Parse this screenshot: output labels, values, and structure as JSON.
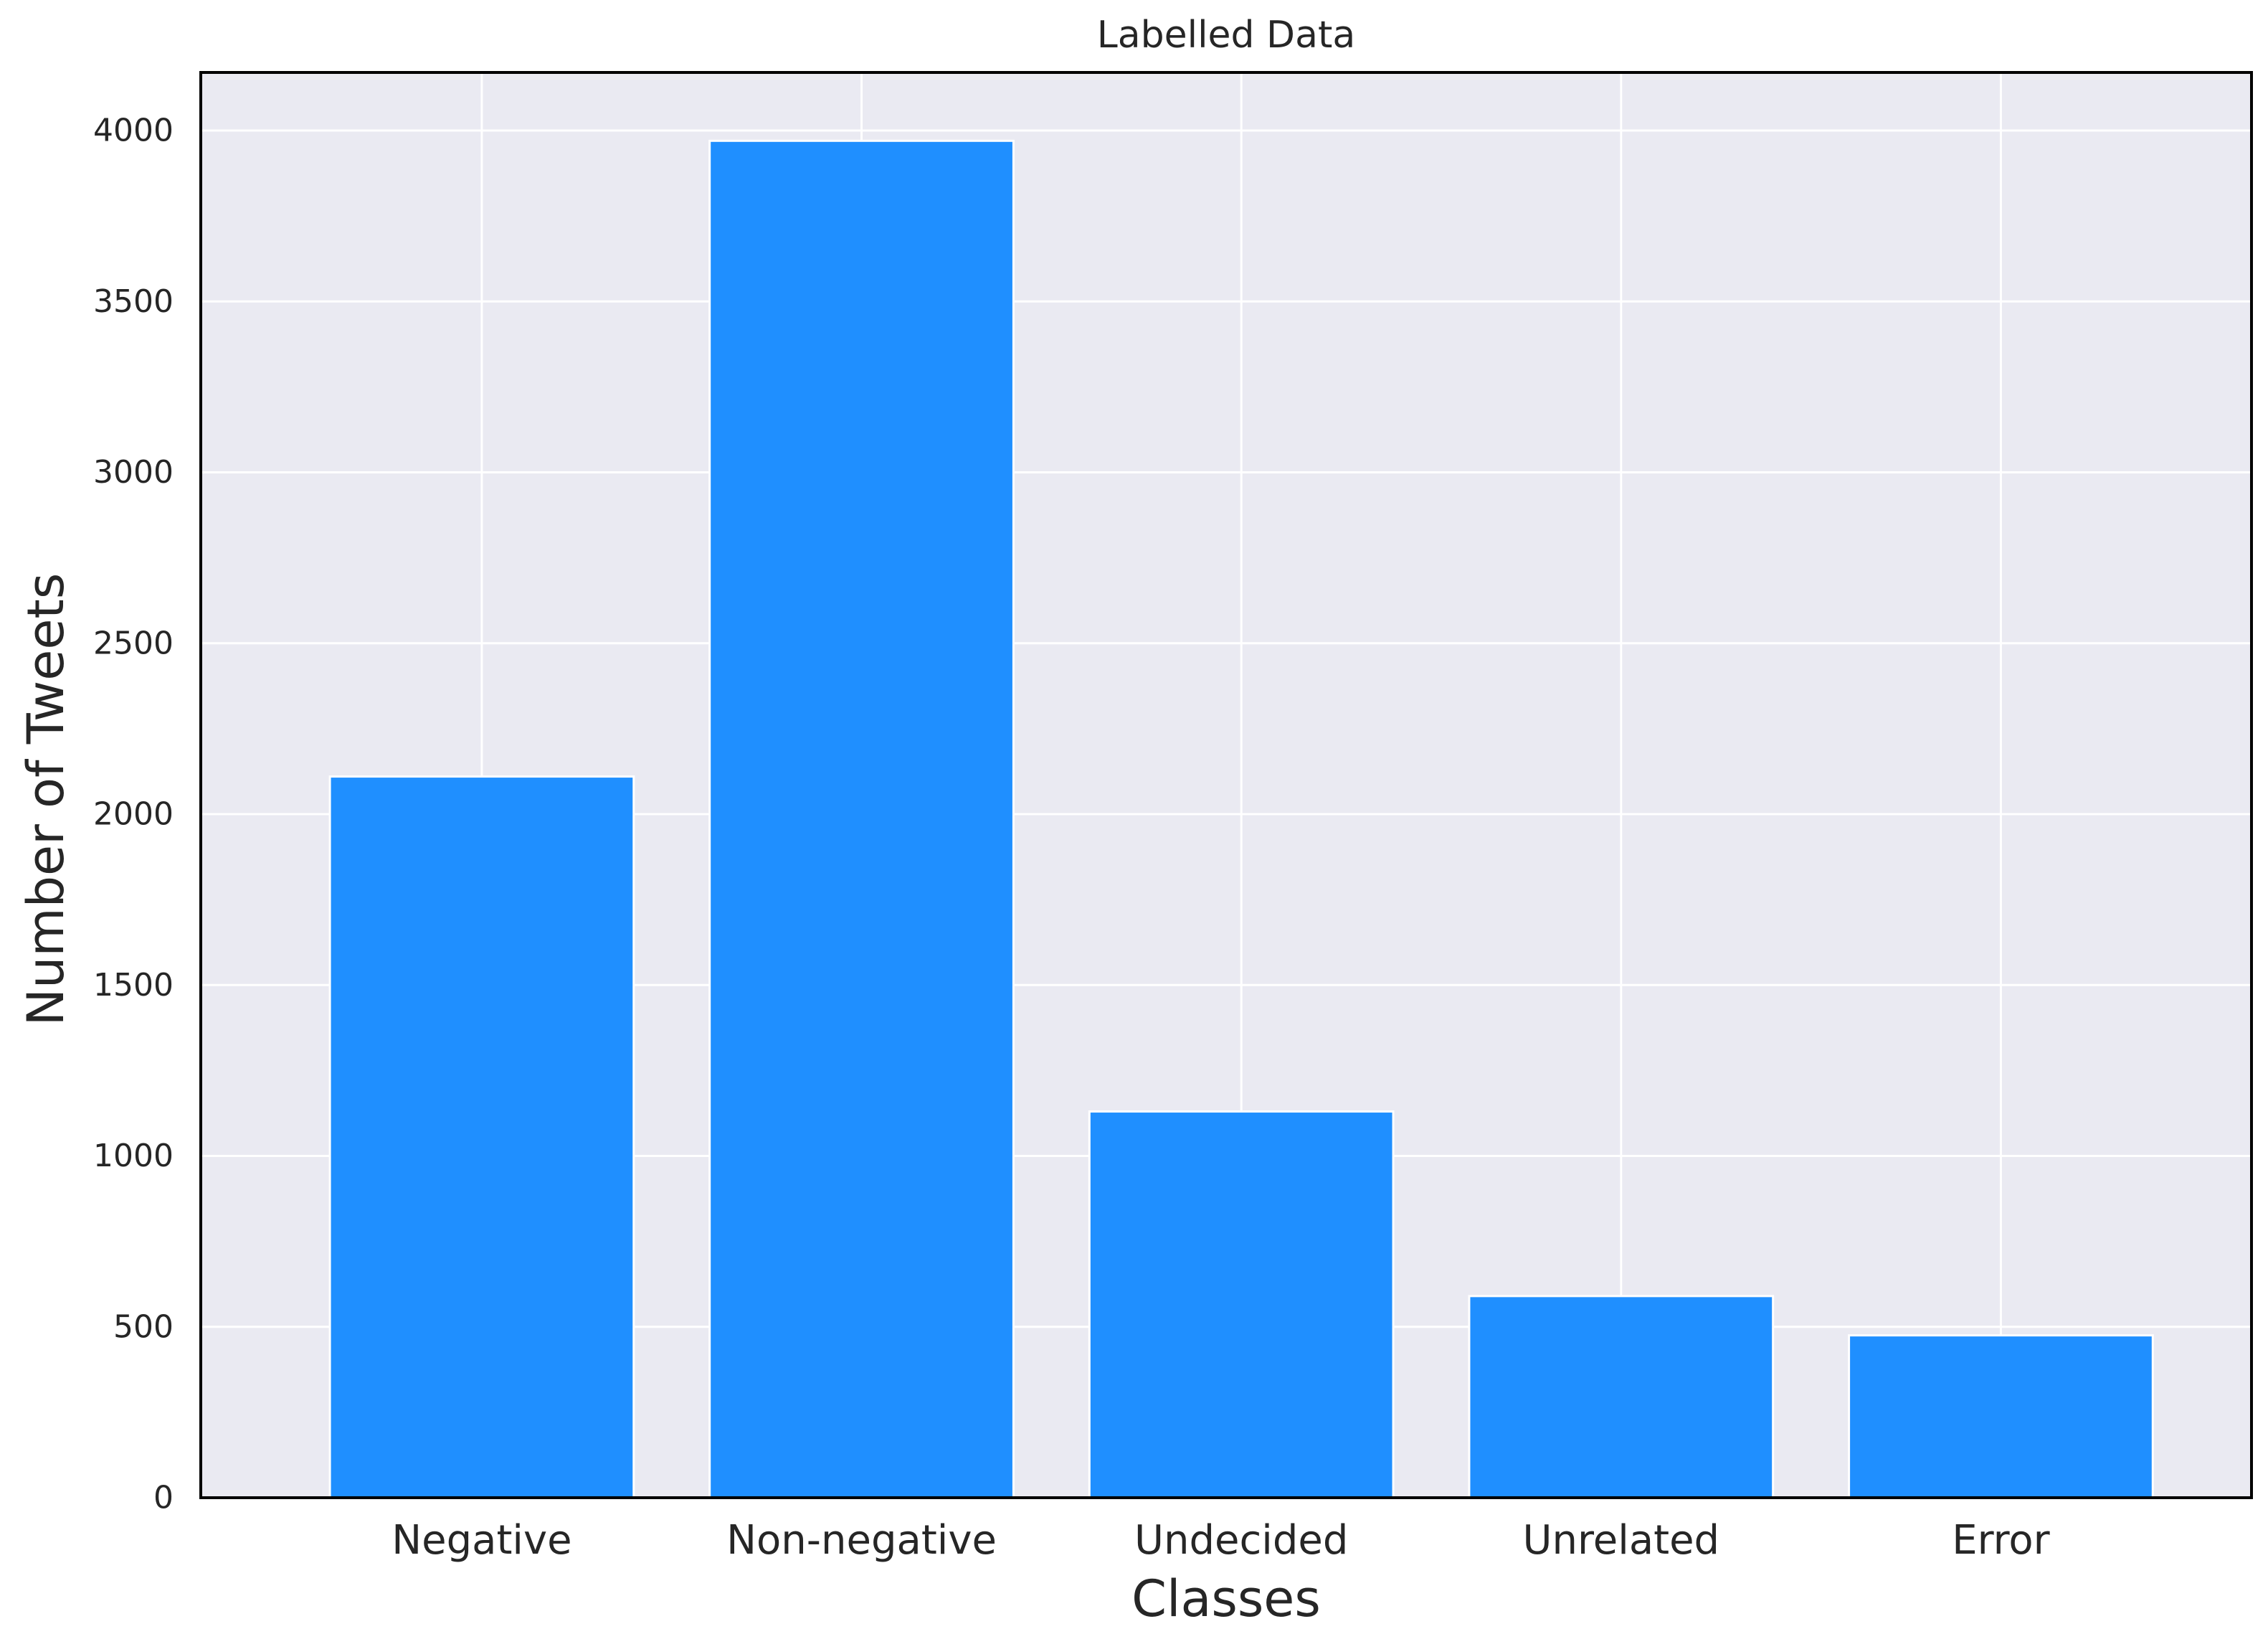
{
  "chart_data": {
    "type": "bar",
    "title": "Labelled Data",
    "xlabel": "Classes",
    "ylabel": "Number of Tweets",
    "categories": [
      "Negative",
      "Non-negative",
      "Undecided",
      "Unrelated",
      "Error"
    ],
    "values": [
      2110,
      3970,
      1130,
      590,
      475
    ],
    "ylim": [
      0,
      4170
    ],
    "yticks": [
      0,
      500,
      1000,
      1500,
      2000,
      2500,
      3000,
      3500,
      4000
    ],
    "grid": true,
    "legend": "none",
    "colors": {
      "bar": "#1f8fff",
      "background": "#eaeaf2",
      "grid": "#ffffff",
      "axes": "#000000"
    }
  }
}
